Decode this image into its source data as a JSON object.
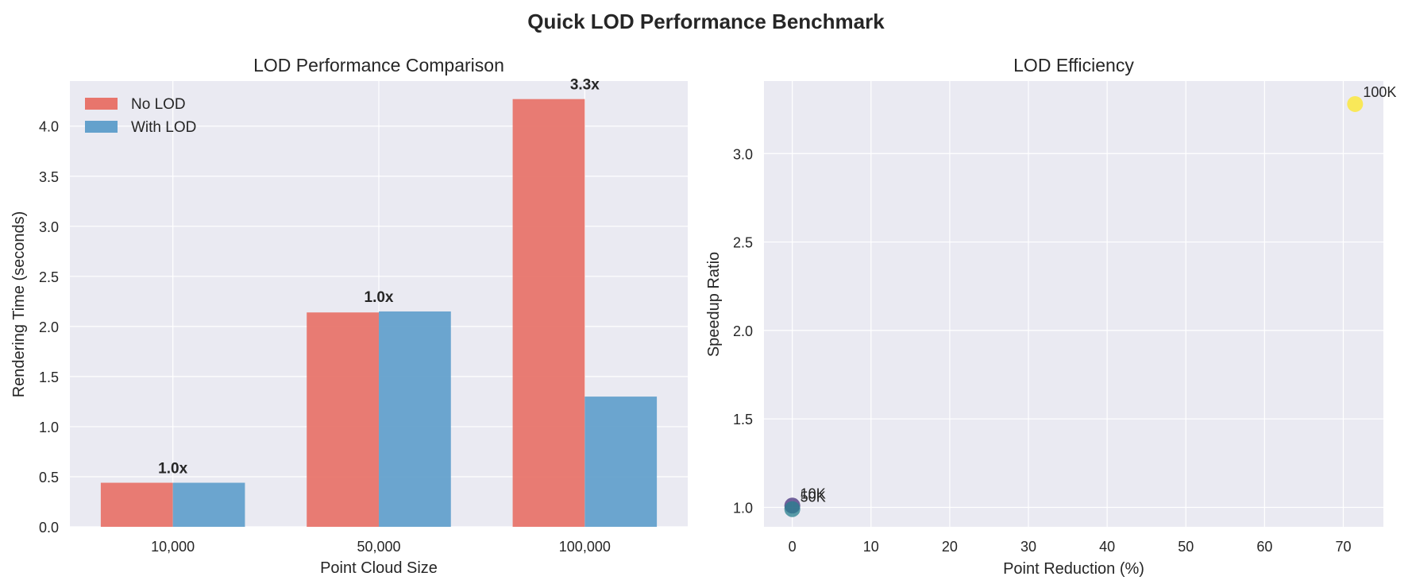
{
  "figure": {
    "title": "Quick LOD Performance Benchmark"
  },
  "colors": {
    "no_lod": "#e8756c",
    "with_lod": "#64a1cc",
    "panel_bg": "#eaeaf2",
    "grid": "#ffffff"
  },
  "chart_data": [
    {
      "type": "bar",
      "title": "LOD Performance Comparison",
      "xlabel": "Point Cloud Size",
      "ylabel": "Rendering Time (seconds)",
      "categories": [
        "10,000",
        "50,000",
        "100,000"
      ],
      "series": [
        {
          "name": "No LOD",
          "values": [
            0.44,
            2.14,
            4.27
          ]
        },
        {
          "name": "With LOD",
          "values": [
            0.44,
            2.15,
            1.3
          ]
        }
      ],
      "bar_labels": [
        "1.0x",
        "1.0x",
        "3.3x"
      ],
      "ylim": [
        0,
        4.45
      ],
      "yticks": [
        0.0,
        0.5,
        1.0,
        1.5,
        2.0,
        2.5,
        3.0,
        3.5,
        4.0
      ],
      "ytick_labels": [
        "0.0",
        "0.5",
        "1.0",
        "1.5",
        "2.0",
        "2.5",
        "3.0",
        "3.5",
        "4.0"
      ],
      "grid": true,
      "legend": "top-left"
    },
    {
      "type": "scatter",
      "title": "LOD Efficiency",
      "xlabel": "Point Reduction (%)",
      "ylabel": "Speedup Ratio",
      "points": [
        {
          "label": "10K",
          "x": 0,
          "y": 1.01,
          "color": "#46327e"
        },
        {
          "label": "50K",
          "x": 0,
          "y": 0.99,
          "color": "#277f8e"
        },
        {
          "label": "100K",
          "x": 71.5,
          "y": 3.28,
          "color": "#fde725"
        }
      ],
      "xlim": [
        -3.6,
        75.1
      ],
      "ylim": [
        0.89,
        3.41
      ],
      "xticks": [
        0,
        10,
        20,
        30,
        40,
        50,
        60,
        70
      ],
      "xtick_labels": [
        "0",
        "10",
        "20",
        "30",
        "40",
        "50",
        "60",
        "70"
      ],
      "yticks": [
        1.0,
        1.5,
        2.0,
        2.5,
        3.0
      ],
      "ytick_labels": [
        "1.0",
        "1.5",
        "2.0",
        "2.5",
        "3.0"
      ],
      "grid": true
    }
  ]
}
